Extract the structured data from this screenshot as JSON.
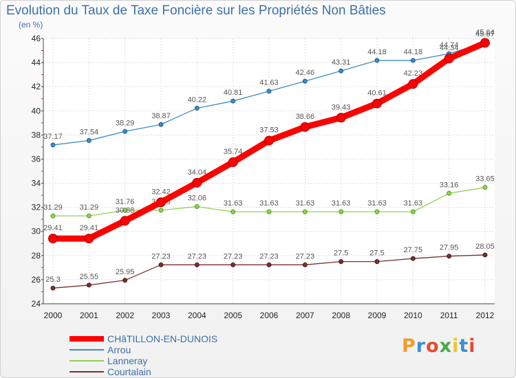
{
  "title": "Evolution du Taux de Taxe Foncière sur les Propriétés Non Bâties",
  "unit": "(en %)",
  "chart_data": {
    "type": "line",
    "x": [
      "2000",
      "2001",
      "2002",
      "2003",
      "2004",
      "2005",
      "2006",
      "2007",
      "2008",
      "2009",
      "2010",
      "2011",
      "2012"
    ],
    "ylim": [
      24,
      46
    ],
    "yticks": [
      24,
      26,
      28,
      30,
      32,
      34,
      36,
      38,
      40,
      42,
      44,
      46
    ],
    "grid": true,
    "legend_position": "bottom-left",
    "series": [
      {
        "name": "CHâTILLON-EN-DUNOIS",
        "color": "#ff0000",
        "values": [
          29.41,
          29.41,
          30.88,
          32.42,
          34.04,
          35.74,
          37.53,
          38.66,
          39.43,
          40.61,
          42.23,
          44.34,
          45.64
        ]
      },
      {
        "name": "Arrou",
        "color": "#3b8bc8",
        "values": [
          37.17,
          37.54,
          38.29,
          38.87,
          40.22,
          40.81,
          41.63,
          42.46,
          43.31,
          44.18,
          44.18,
          44.74,
          45.67
        ]
      },
      {
        "name": "Lanneray",
        "color": "#8fd14f",
        "values": [
          31.29,
          31.29,
          31.76,
          31.76,
          32.06,
          31.63,
          31.63,
          31.63,
          31.63,
          31.63,
          31.63,
          33.16,
          33.65
        ]
      },
      {
        "name": "Courtalain",
        "color": "#7a2f2f",
        "values": [
          25.3,
          25.55,
          25.95,
          27.23,
          27.23,
          27.23,
          27.23,
          27.23,
          27.5,
          27.5,
          27.75,
          27.95,
          28.05
        ]
      }
    ]
  },
  "logo": {
    "text": "Proxiti",
    "colors": [
      "#f39a2b",
      "#3c8fd1",
      "#e8492e",
      "#4aa84a",
      "#f2c230",
      "#3c8fd1",
      "#e8492e"
    ]
  }
}
